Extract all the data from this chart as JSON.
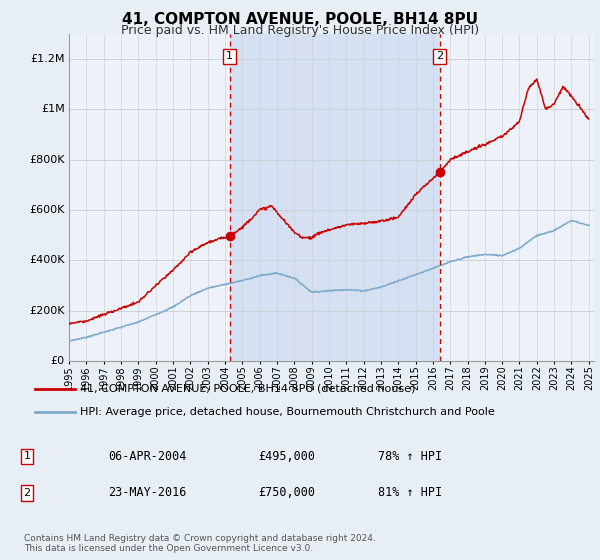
{
  "title": "41, COMPTON AVENUE, POOLE, BH14 8PU",
  "subtitle": "Price paid vs. HM Land Registry's House Price Index (HPI)",
  "background_color": "#e8eef5",
  "plot_background": "#edf2fa",
  "shade_color": "#d0ddf0",
  "ylim": [
    0,
    1300000
  ],
  "yticks": [
    0,
    200000,
    400000,
    600000,
    800000,
    1000000,
    1200000
  ],
  "ytick_labels": [
    "£0",
    "£200K",
    "£400K",
    "£600K",
    "£800K",
    "£1M",
    "£1.2M"
  ],
  "sale1_date": 2004.27,
  "sale1_price": 495000,
  "sale1_label": "1",
  "sale2_date": 2016.39,
  "sale2_price": 750000,
  "sale2_label": "2",
  "legend_line1": "41, COMPTON AVENUE, POOLE, BH14 8PU (detached house)",
  "legend_line2": "HPI: Average price, detached house, Bournemouth Christchurch and Poole",
  "table_row1": [
    "1",
    "06-APR-2004",
    "£495,000",
    "78% ↑ HPI"
  ],
  "table_row2": [
    "2",
    "23-MAY-2016",
    "£750,000",
    "81% ↑ HPI"
  ],
  "footer": "Contains HM Land Registry data © Crown copyright and database right 2024.\nThis data is licensed under the Open Government Licence v3.0.",
  "line_color_red": "#cc0000",
  "line_color_blue": "#7eaacc",
  "vline_color": "#cc0000",
  "grid_color": "#cccccc",
  "box_color": "#cc0000",
  "hpi_x": [
    1995,
    1996,
    1997,
    1998,
    1999,
    2000,
    2001,
    2002,
    2003,
    2004,
    2005,
    2006,
    2007,
    2008,
    2009,
    2010,
    2011,
    2012,
    2013,
    2014,
    2015,
    2016,
    2017,
    2018,
    2019,
    2020,
    2021,
    2022,
    2023,
    2024,
    2025
  ],
  "hpi_y": [
    80000,
    95000,
    115000,
    135000,
    155000,
    185000,
    215000,
    260000,
    290000,
    305000,
    320000,
    340000,
    350000,
    330000,
    275000,
    280000,
    285000,
    280000,
    295000,
    320000,
    345000,
    370000,
    395000,
    415000,
    425000,
    420000,
    450000,
    500000,
    520000,
    560000,
    540000
  ],
  "red_x": [
    1995,
    1996,
    1997,
    1998,
    1999,
    2000,
    2001,
    2002,
    2003,
    2004.27,
    2005,
    2006,
    2006.7,
    2007,
    2008,
    2008.5,
    2009,
    2009.5,
    2010,
    2011,
    2012,
    2013,
    2014,
    2015,
    2016.39,
    2017,
    2018,
    2019,
    2020,
    2021,
    2021.5,
    2022,
    2022.5,
    2023,
    2023.5,
    2024,
    2025
  ],
  "red_y": [
    150000,
    160000,
    185000,
    210000,
    235000,
    300000,
    360000,
    430000,
    470000,
    495000,
    530000,
    600000,
    615000,
    590000,
    510000,
    490000,
    490000,
    510000,
    520000,
    540000,
    545000,
    555000,
    570000,
    660000,
    750000,
    800000,
    830000,
    860000,
    890000,
    950000,
    1080000,
    1120000,
    1000000,
    1020000,
    1090000,
    1050000,
    960000
  ]
}
